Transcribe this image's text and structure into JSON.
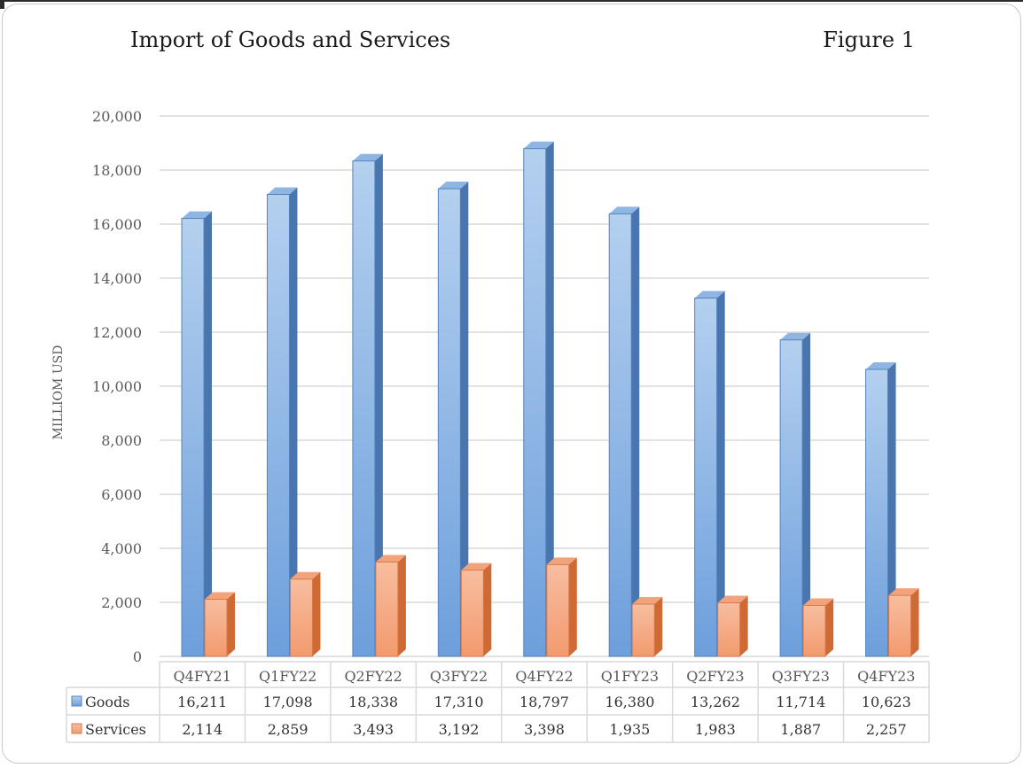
{
  "header": {
    "title": "Import of Goods and Services",
    "figure_label": "Figure 1"
  },
  "chart_data": {
    "type": "bar",
    "title": "Import of Goods and Services",
    "xlabel": "",
    "ylabel": "MILLIOM USD",
    "ylim": [
      0,
      20000
    ],
    "yticks": [
      "0",
      "2,000",
      "4,000",
      "6,000",
      "8,000",
      "10,000",
      "12,000",
      "14,000",
      "16,000",
      "18,000",
      "20,000"
    ],
    "categories": [
      "Q4FY21",
      "Q1FY22",
      "Q2FY22",
      "Q3FY22",
      "Q4FY22",
      "Q1FY23",
      "Q2FY23",
      "Q3FY23",
      "Q4FY23"
    ],
    "series": [
      {
        "name": "Goods",
        "color": "#5b8fd0",
        "values": [
          16211,
          17098,
          18338,
          17310,
          18797,
          16380,
          13262,
          11714,
          10623
        ],
        "labels": [
          "16,211",
          "17,098",
          "18,338",
          "17,310",
          "18,797",
          "16,380",
          "13,262",
          "11,714",
          "10,623"
        ]
      },
      {
        "name": "Services",
        "color": "#ee8450",
        "values": [
          2114,
          2859,
          3493,
          3192,
          3398,
          1935,
          1983,
          1887,
          2257
        ],
        "labels": [
          "2,114",
          "2,859",
          "3,493",
          "3,192",
          "3,398",
          "1,935",
          "1,983",
          "1,887",
          "2,257"
        ]
      }
    ],
    "grid": true,
    "legend": "data-table"
  }
}
